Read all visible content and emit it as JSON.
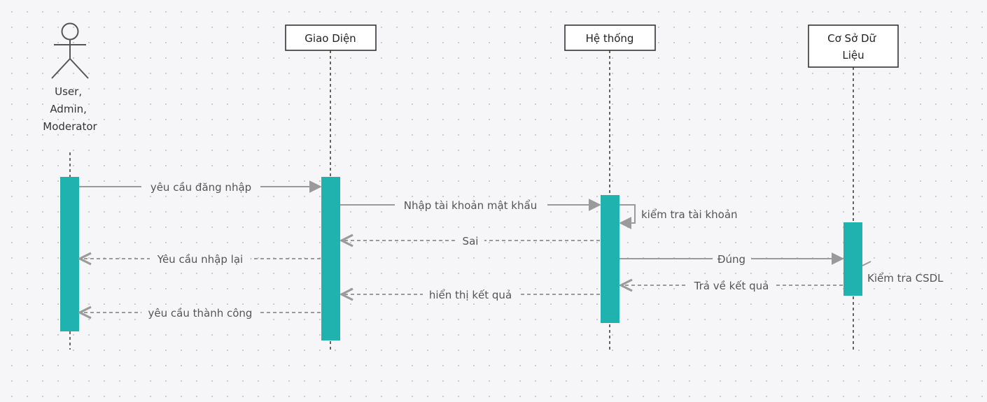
{
  "diagram": {
    "actor": {
      "label_lines": [
        "User,",
        "Admin,",
        "Moderator"
      ]
    },
    "participants": [
      {
        "label_lines": [
          "Giao Diện"
        ]
      },
      {
        "label_lines": [
          "Hệ thống"
        ]
      },
      {
        "label_lines": [
          "Cơ Sở Dữ",
          "Liệu"
        ]
      }
    ],
    "messages": [
      {
        "label": "yêu cầu đăng nhập",
        "kind": "sync",
        "from": "actor",
        "to": "giao-dien"
      },
      {
        "label": "Nhập tài khoản mật khẩu",
        "kind": "sync",
        "from": "giao-dien",
        "to": "he-thong"
      },
      {
        "label": "kiểm tra tài khoản",
        "kind": "self",
        "from": "he-thong",
        "to": "he-thong"
      },
      {
        "label": "Sai",
        "kind": "return",
        "from": "he-thong",
        "to": "giao-dien"
      },
      {
        "label": "Yêu cầu nhập lại",
        "kind": "return",
        "from": "giao-dien",
        "to": "actor"
      },
      {
        "label": "Đúng",
        "kind": "sync",
        "from": "he-thong",
        "to": "co-so-du-lieu"
      },
      {
        "label": "Kiểm tra CSDL",
        "kind": "self",
        "from": "co-so-du-lieu",
        "to": "co-so-du-lieu"
      },
      {
        "label": "Trả về kết quả",
        "kind": "return",
        "from": "co-so-du-lieu",
        "to": "he-thong"
      },
      {
        "label": "hiển thị kết quả",
        "kind": "return",
        "from": "he-thong",
        "to": "giao-dien"
      },
      {
        "label": "yêu cầu thành công",
        "kind": "return",
        "from": "giao-dien",
        "to": "actor"
      }
    ],
    "colors": {
      "activation": "#20b2ae",
      "line": "#9a9a9a",
      "lifeline": "#333333",
      "box_border": "#333333",
      "box_fill": "#ffffff"
    }
  }
}
